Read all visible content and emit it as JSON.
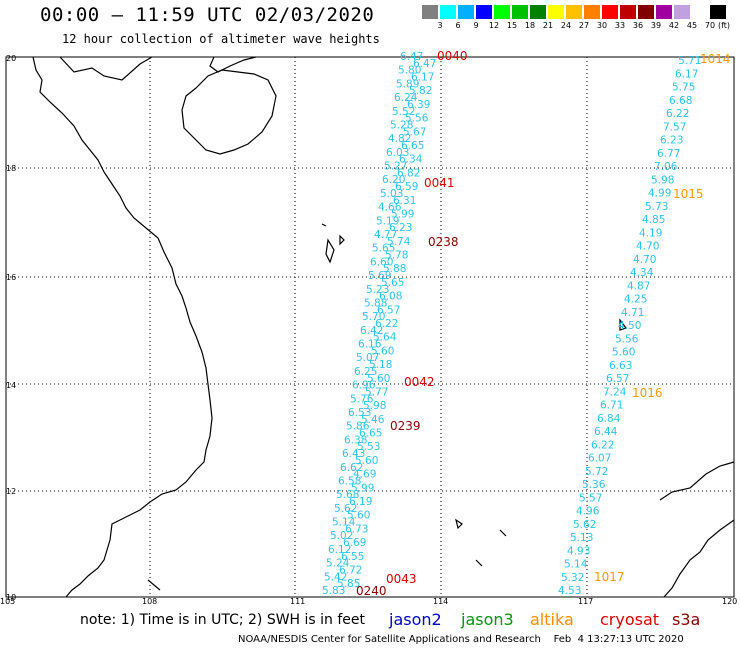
{
  "title": "00:00 – 11:59 UTC 02/03/2020",
  "subtitle": "12 hour collection of altimeter wave heights",
  "colorbar": {
    "colors": [
      "#808080",
      "#00ffff",
      "#00b0ff",
      "#0000ff",
      "#00ff00",
      "#00c000",
      "#008000",
      "#ffff00",
      "#ffc000",
      "#ff8000",
      "#ff0000",
      "#c00000",
      "#800000",
      "#a000a0",
      "#c0a0e0",
      "#ffffff",
      "#000000"
    ],
    "ticks": [
      "3",
      "6",
      "9",
      "12",
      "15",
      "18",
      "21",
      "24",
      "27",
      "30",
      "33",
      "36",
      "39",
      "42",
      "45",
      "70"
    ],
    "unit": "(ft)"
  },
  "axes": {
    "lon_labels": [
      "105",
      "108",
      "111",
      "114",
      "117",
      "120"
    ],
    "lat_labels": [
      "20",
      "18",
      "16",
      "14",
      "12",
      "10"
    ]
  },
  "passes": {
    "p0040": "0040",
    "p0041": "0041",
    "p0238": "0238",
    "p0042": "0042",
    "p0239": "0239",
    "p0043": "0043",
    "p0240": "0240",
    "p1014": "1014",
    "p1015": "1015",
    "p1016": "1016",
    "p1017": "1017"
  },
  "track_west": [
    "6.47",
    "6.47",
    "5.80",
    "6.17",
    "5.89",
    "5.82",
    "6.24",
    "6.39",
    "5.52",
    "5.56",
    "5.28",
    "5.67",
    "4.82",
    "6.65",
    "6.03",
    "6.34",
    "5.27",
    "6.82",
    "6.20",
    "6.59",
    "5.03",
    "6.31",
    "4.66",
    "5.99",
    "5.19",
    "6.23",
    "4.77",
    "5.74",
    "5.65",
    "5.78",
    "6.60",
    "5.88",
    "5.69",
    "5.65",
    "5.23",
    "6.08",
    "5.88",
    "6.57",
    "5.70",
    "6.22",
    "6.42",
    "5.64",
    "6.16",
    "5.60",
    "5.07",
    "5.18",
    "6.25",
    "5.60",
    "6.96",
    "5.77",
    "5.76",
    "5.98",
    "6.53",
    "5.46",
    "5.86",
    "6.65",
    "6.38",
    "5.53",
    "6.43",
    "5.60",
    "6.62",
    "4.69",
    "6.58",
    "5.99",
    "5.68",
    "6.19",
    "5.62",
    "5.60",
    "5.14",
    "6.73",
    "5.02",
    "6.69",
    "6.12",
    "6.55",
    "5.24",
    "6.72",
    "5.42",
    "5.85",
    "5.83"
  ],
  "track_east": [
    "5.71",
    "6.17",
    "5.75",
    "6.68",
    "6.22",
    "7.57",
    "6.23",
    "6.77",
    "7.06",
    "5.98",
    "4.99",
    "5.73",
    "4.85",
    "4.19",
    "4.70",
    "4.70",
    "4.34",
    "4.87",
    "4.25",
    "4.71",
    "4.50",
    "5.56",
    "5.60",
    "6.63",
    "6.57",
    "7.24",
    "6.71",
    "6.84",
    "6.44",
    "6.22",
    "6.07",
    "5.72",
    "5.36",
    "5.57",
    "4.96",
    "5.62",
    "5.13",
    "4.93",
    "5.14",
    "5.32",
    "4.53"
  ],
  "note": "note: 1) Time is in UTC; 2) SWH is in feet",
  "satellites": {
    "jason2": "jason2",
    "jason3": "jason3",
    "altika": "altika",
    "cryosat": "cryosat",
    "s3a": "s3a",
    "c_jason2": "#0000cc",
    "c_jason3": "#009900",
    "c_altika": "#ff8c00",
    "c_cryosat": "#e00000",
    "c_s3a": "#8b0000"
  },
  "footer": "NOAA/NESDIS Center for Satellite Applications and Research    Feb  4 13:27:13 UTC 2020",
  "colors": {
    "wave": "#2ec4e6",
    "pass_red": "#dd0000",
    "pass_dark": "#8b0000",
    "pass_orange": "#ff9900"
  }
}
